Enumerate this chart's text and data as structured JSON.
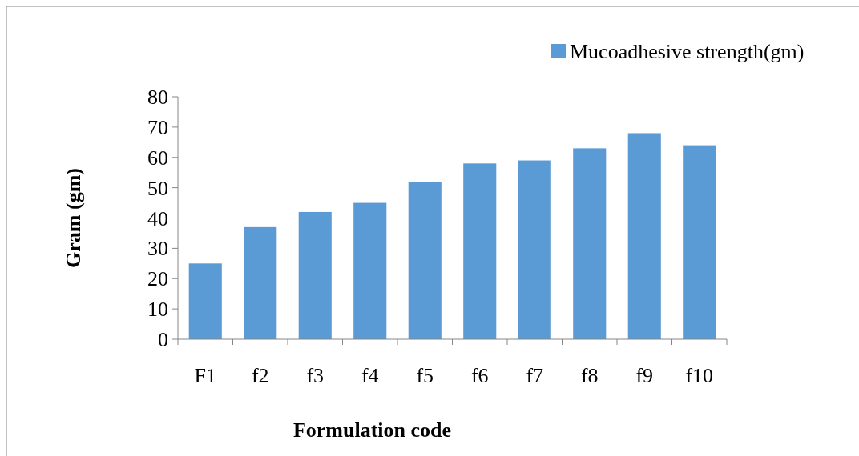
{
  "chart_data": {
    "type": "bar",
    "xlabel": "Formulation code",
    "ylabel": "Gram (gm)",
    "categories": [
      "F1",
      "f2",
      "f3",
      "f4",
      "f5",
      "f6",
      "f7",
      "f8",
      "f9",
      "f10"
    ],
    "series": [
      {
        "name": "Mucoadhesive strength(gm)",
        "color": "#5b9bd5",
        "values": [
          25,
          37,
          42,
          45,
          52,
          58,
          59,
          63,
          68,
          64
        ]
      }
    ],
    "ylim": [
      0,
      80
    ],
    "yticks": [
      0,
      10,
      20,
      30,
      40,
      50,
      60,
      70,
      80
    ],
    "grid": false,
    "legend": "top right"
  }
}
